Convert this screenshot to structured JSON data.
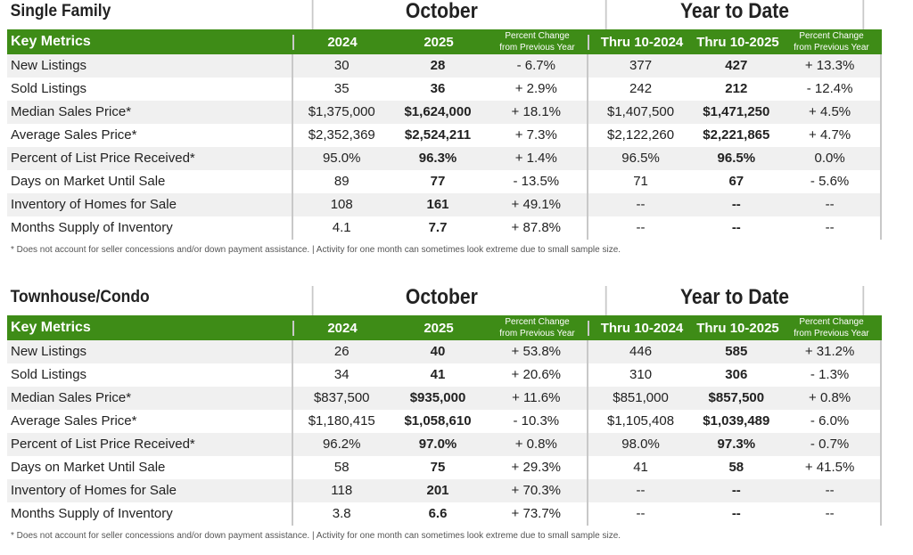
{
  "headers": {
    "key_metrics": "Key Metrics",
    "y2024": "2024",
    "y2025": "2025",
    "pct1": "Percent Change",
    "pct2": "from Previous Year",
    "thru24": "Thru 10-2024",
    "thru25": "Thru 10-2025"
  },
  "groups": {
    "month": "October",
    "ytd": "Year to Date"
  },
  "footnote": "* Does not account for seller concessions and/or down payment assistance.  |  Activity for one month can sometimes look extreme due to small sample size.",
  "sections": [
    {
      "title": "Single Family",
      "rows": [
        [
          "New Listings",
          "30",
          "28",
          "- 6.7%",
          "377",
          "427",
          "+ 13.3%"
        ],
        [
          "Sold Listings",
          "35",
          "36",
          "+ 2.9%",
          "242",
          "212",
          "- 12.4%"
        ],
        [
          "Median Sales Price*",
          "$1,375,000",
          "$1,624,000",
          "+ 18.1%",
          "$1,407,500",
          "$1,471,250",
          "+ 4.5%"
        ],
        [
          "Average Sales Price*",
          "$2,352,369",
          "$2,524,211",
          "+ 7.3%",
          "$2,122,260",
          "$2,221,865",
          "+ 4.7%"
        ],
        [
          "Percent of List Price Received*",
          "95.0%",
          "96.3%",
          "+ 1.4%",
          "96.5%",
          "96.5%",
          "0.0%"
        ],
        [
          "Days on Market Until Sale",
          "89",
          "77",
          "- 13.5%",
          "71",
          "67",
          "- 5.6%"
        ],
        [
          "Inventory of Homes for Sale",
          "108",
          "161",
          "+ 49.1%",
          "--",
          "--",
          "--"
        ],
        [
          "Months Supply of Inventory",
          "4.1",
          "7.7",
          "+ 87.8%",
          "--",
          "--",
          "--"
        ]
      ]
    },
    {
      "title": "Townhouse/Condo",
      "rows": [
        [
          "New Listings",
          "26",
          "40",
          "+ 53.8%",
          "446",
          "585",
          "+ 31.2%"
        ],
        [
          "Sold Listings",
          "34",
          "41",
          "+ 20.6%",
          "310",
          "306",
          "- 1.3%"
        ],
        [
          "Median Sales Price*",
          "$837,500",
          "$935,000",
          "+ 11.6%",
          "$851,000",
          "$857,500",
          "+ 0.8%"
        ],
        [
          "Average Sales Price*",
          "$1,180,415",
          "$1,058,610",
          "- 10.3%",
          "$1,105,408",
          "$1,039,489",
          "- 6.0%"
        ],
        [
          "Percent of List Price Received*",
          "96.2%",
          "97.0%",
          "+ 0.8%",
          "98.0%",
          "97.3%",
          "- 0.7%"
        ],
        [
          "Days on Market Until Sale",
          "58",
          "75",
          "+ 29.3%",
          "41",
          "58",
          "+ 41.5%"
        ],
        [
          "Inventory of Homes for Sale",
          "118",
          "201",
          "+ 70.3%",
          "--",
          "--",
          "--"
        ],
        [
          "Months Supply of Inventory",
          "3.8",
          "6.6",
          "+ 73.7%",
          "--",
          "--",
          "--"
        ]
      ]
    }
  ]
}
